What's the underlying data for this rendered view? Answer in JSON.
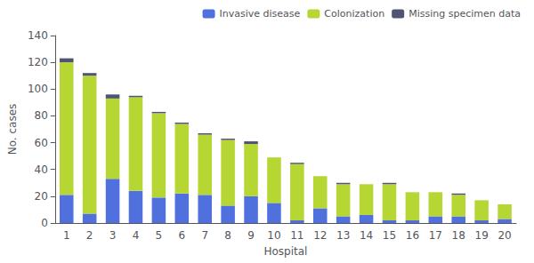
{
  "chart_data": {
    "type": "bar",
    "stacked": true,
    "categories": [
      "1",
      "2",
      "3",
      "4",
      "5",
      "6",
      "7",
      "8",
      "9",
      "10",
      "11",
      "12",
      "13",
      "14",
      "15",
      "16",
      "17",
      "18",
      "19",
      "20"
    ],
    "series": [
      {
        "name": "Invasive disease",
        "values": [
          21,
          7,
          33,
          24,
          19,
          22,
          21,
          13,
          20,
          15,
          2,
          11,
          5,
          6,
          2,
          2,
          5,
          5,
          2,
          3
        ]
      },
      {
        "name": "Colonization",
        "values": [
          99,
          103,
          60,
          70,
          63,
          52,
          45,
          49,
          39,
          34,
          42,
          24,
          24,
          23,
          27,
          21,
          18,
          16,
          15,
          11
        ]
      },
      {
        "name": "Missing specimen data",
        "values": [
          3,
          2,
          3,
          1,
          1,
          1,
          1,
          1,
          2,
          0,
          1,
          0,
          1,
          0,
          1,
          0,
          0,
          1,
          0,
          0
        ]
      }
    ],
    "xlabel": "Hospital",
    "ylabel": "No. cases",
    "ylim": [
      0,
      140
    ],
    "yticks": [
      0,
      20,
      40,
      60,
      80,
      100,
      120,
      140
    ],
    "grid": false,
    "legend": "upper right"
  }
}
